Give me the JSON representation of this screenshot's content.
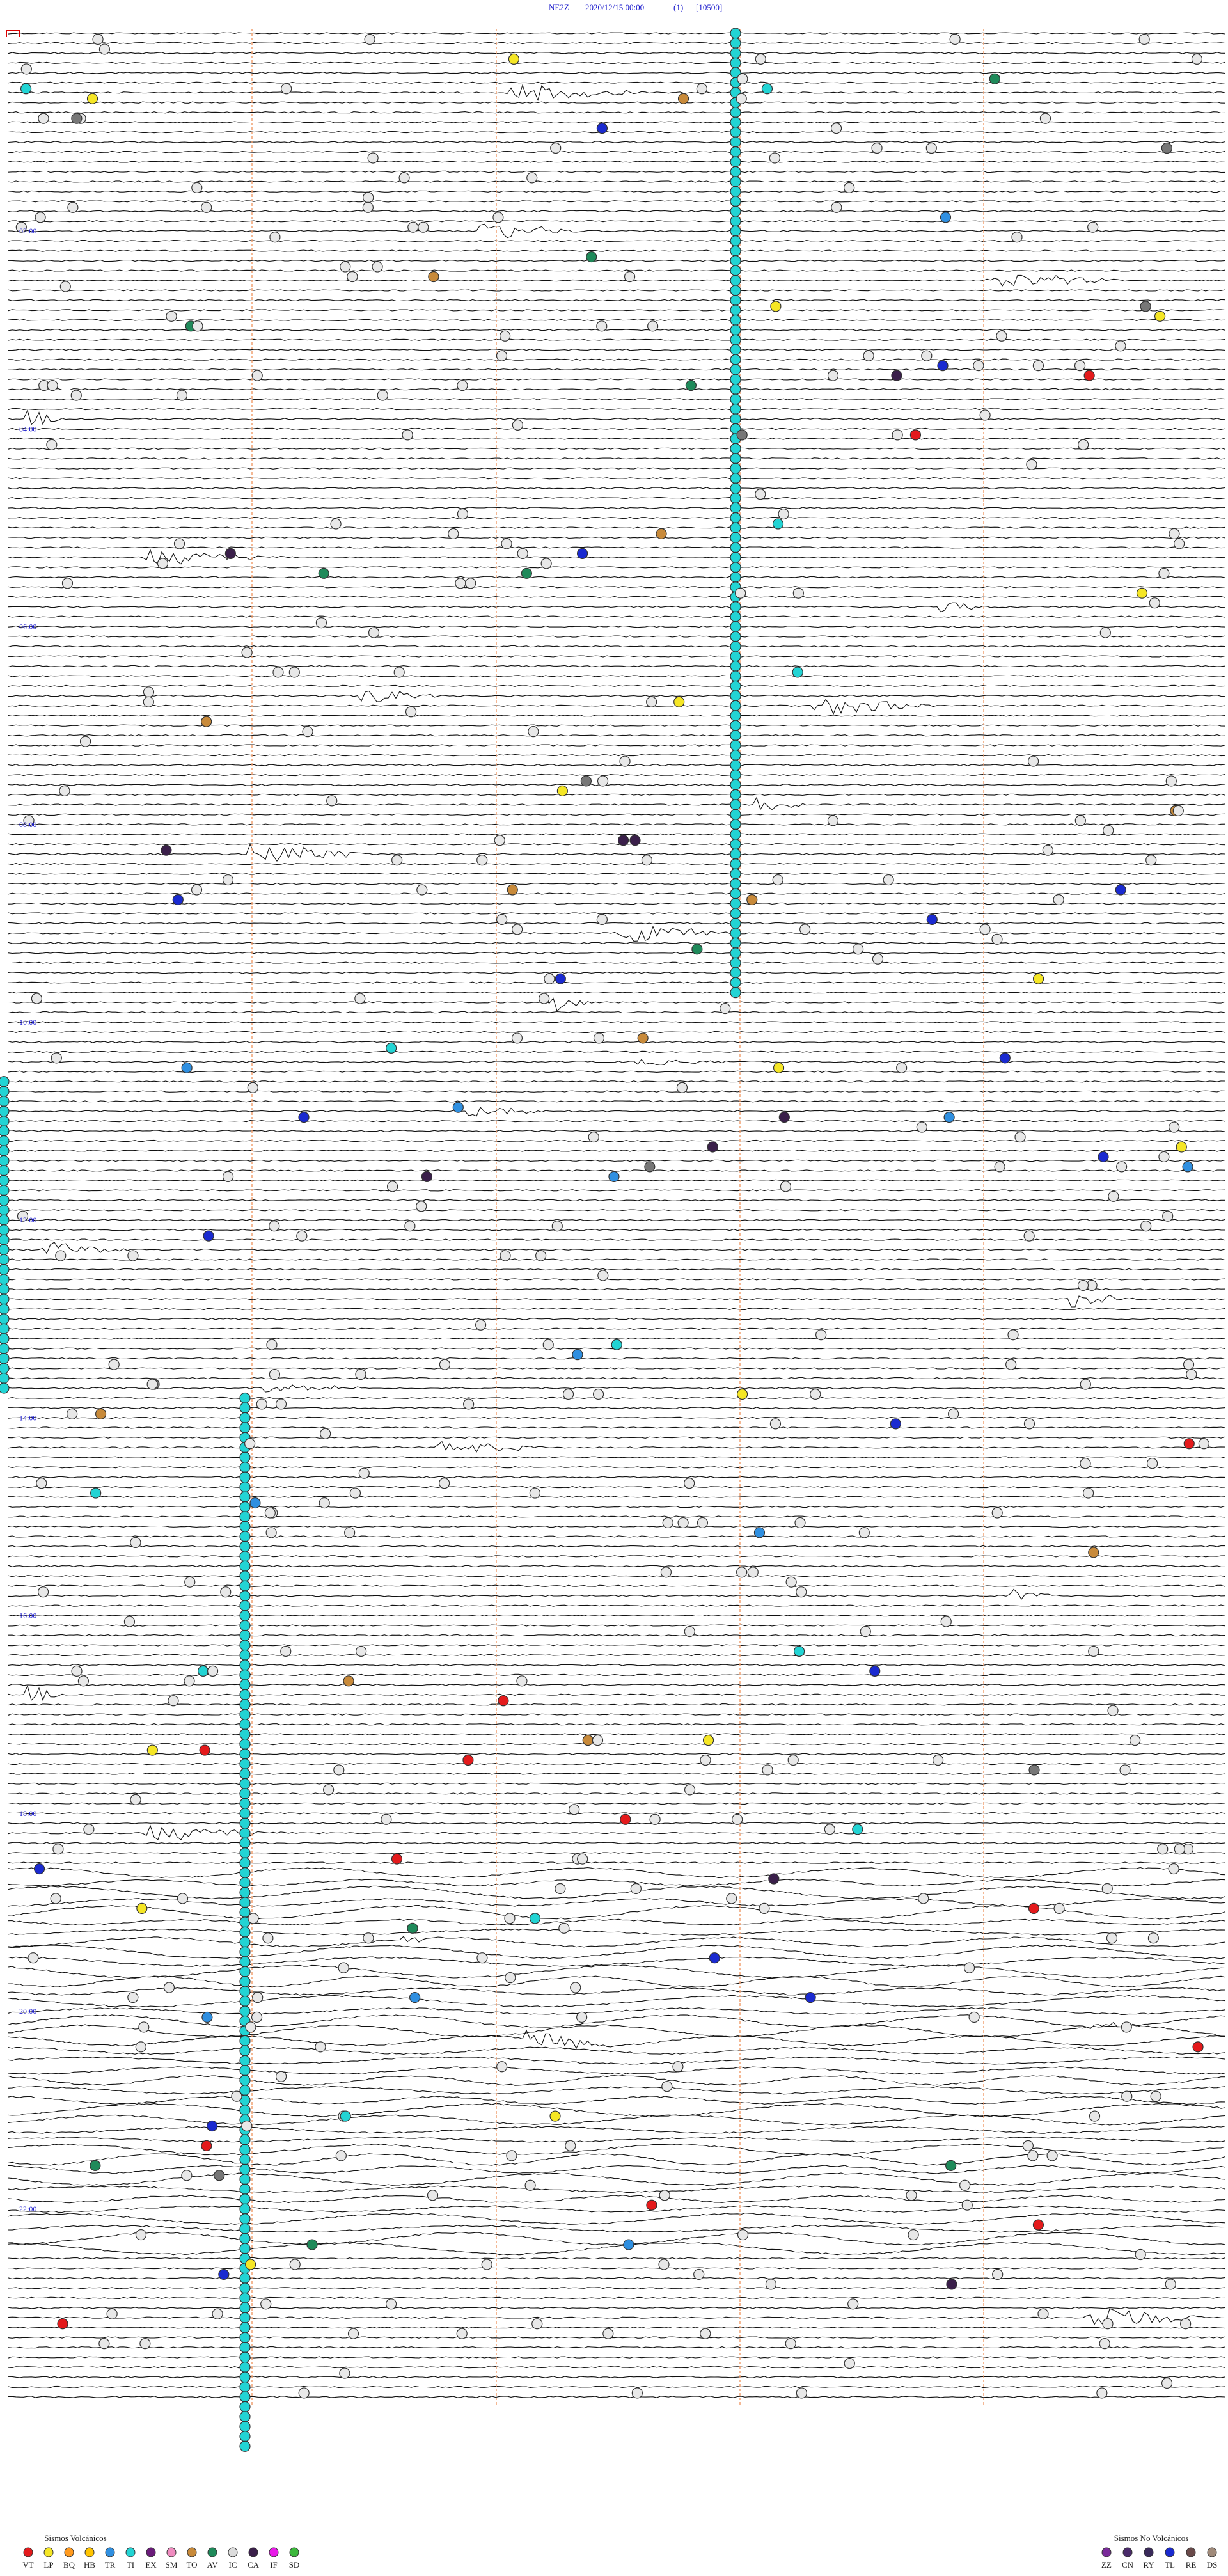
{
  "header": {
    "station": "NE2Z",
    "datetime": "2020/12/15 00:00",
    "index": "(1)",
    "scale": "[10500]"
  },
  "time_labels": [
    "02:00",
    "04:00",
    "06:00",
    "08:00",
    "10:00",
    "12:00",
    "14:00",
    "16:00",
    "18:00",
    "20:00",
    "22:00"
  ],
  "legend": {
    "volcanic": {
      "title": "Sismos Volcánicos",
      "items": [
        {
          "code": "VT",
          "color": "#e41a1c"
        },
        {
          "code": "LP",
          "color": "#f5e625"
        },
        {
          "code": "BQ",
          "color": "#ff9a1f"
        },
        {
          "code": "HB",
          "color": "#ffc400"
        },
        {
          "code": "TR",
          "color": "#2f8fe0"
        },
        {
          "code": "TI",
          "color": "#22d4d4"
        },
        {
          "code": "EX",
          "color": "#6a1b7a"
        },
        {
          "code": "SM",
          "color": "#f08cc0"
        },
        {
          "code": "TO",
          "color": "#c88a3a"
        },
        {
          "code": "AV",
          "color": "#1f8a5a"
        },
        {
          "code": "IC",
          "color": "#dddddd"
        },
        {
          "code": "CA",
          "color": "#3a1f4a"
        },
        {
          "code": "IF",
          "color": "#e81ae8"
        },
        {
          "code": "SD",
          "color": "#3cb83c"
        }
      ]
    },
    "non_volcanic": {
      "title": "Sismos No Volcánicos",
      "items": [
        {
          "code": "ZZ",
          "color": "#7a2a9a"
        },
        {
          "code": "CN",
          "color": "#4a2a6a"
        },
        {
          "code": "RY",
          "color": "#3a2a5a"
        },
        {
          "code": "TL",
          "color": "#1a2ad0"
        },
        {
          "code": "RE",
          "color": "#6a4a4a"
        },
        {
          "code": "DS",
          "color": "#a08a7a"
        }
      ]
    }
  }
}
